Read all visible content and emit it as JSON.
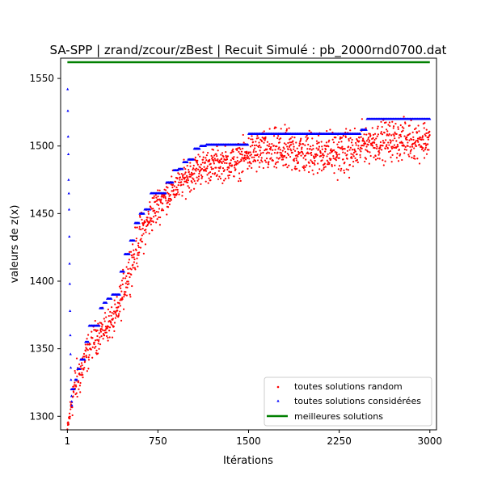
{
  "chart_data": {
    "type": "scatter",
    "title": "SA-SPP | zrand/zcour/zBest | Recuit Simulé : pb_2000rnd0700.dat",
    "xlabel": "Itérations",
    "ylabel": "valeurs de z(x)",
    "xlim": [
      -55,
      3055
    ],
    "ylim": [
      1290,
      1565
    ],
    "x_ticks": [
      1,
      750,
      1500,
      2250,
      3000
    ],
    "x_tick_labels": [
      "1",
      "750",
      "1500",
      "2250",
      "3000"
    ],
    "y_ticks": [
      1300,
      1350,
      1400,
      1450,
      1500,
      1550
    ],
    "y_tick_labels": [
      "1300",
      "1350",
      "1400",
      "1450",
      "1500",
      "1550"
    ],
    "grid": false,
    "legend_position": "lower-right",
    "series": [
      {
        "name": "toutes solutions random",
        "marker": "dot",
        "color": "#ff0000",
        "trend": {
          "x": [
            1,
            50,
            100,
            200,
            300,
            400,
            500,
            600,
            700,
            800,
            900,
            1000,
            1100,
            1200,
            1300,
            1400,
            1500,
            1700,
            2000,
            2300,
            2400,
            2450,
            2700,
            3000
          ],
          "center": [
            1290,
            1318,
            1330,
            1355,
            1365,
            1372,
            1405,
            1432,
            1450,
            1462,
            1470,
            1478,
            1484,
            1486,
            1487,
            1488,
            1494,
            1496,
            1495,
            1495,
            1497,
            1503,
            1504,
            1505
          ],
          "spread": [
            2,
            8,
            8,
            6,
            6,
            6,
            8,
            8,
            7,
            6,
            6,
            6,
            6,
            6,
            6,
            6,
            7,
            8,
            8,
            8,
            8,
            7,
            7,
            7
          ]
        }
      },
      {
        "name": "toutes solutions considérées",
        "marker": "triangle",
        "color": "#0000ff",
        "initial_points": {
          "x": [
            3,
            5,
            7,
            9,
            11,
            13,
            15,
            17,
            19,
            21,
            23,
            25,
            27,
            29,
            31,
            33,
            35,
            37,
            39
          ],
          "y": [
            1542,
            1526,
            1507,
            1494,
            1475,
            1465,
            1453,
            1433,
            1413,
            1398,
            1378,
            1360,
            1346,
            1336,
            1327,
            1320,
            1315,
            1311,
            1308
          ]
        },
        "steps": {
          "x": [
            40,
            65,
            85,
            110,
            150,
            180,
            220,
            270,
            300,
            330,
            370,
            440,
            475,
            520,
            560,
            600,
            640,
            690,
            760,
            820,
            880,
            920,
            960,
            1000,
            1050,
            1100,
            1150,
            1300,
            1500,
            2430,
            2480,
            3000
          ],
          "y": [
            1320,
            1327,
            1335,
            1342,
            1355,
            1367,
            1367,
            1380,
            1384,
            1387,
            1390,
            1407,
            1420,
            1430,
            1443,
            1450,
            1453,
            1465,
            1465,
            1473,
            1482,
            1483,
            1488,
            1490,
            1498,
            1500,
            1501,
            1501,
            1509,
            1512,
            1520,
            1520
          ]
        }
      },
      {
        "name": "meilleures solutions",
        "marker": "line",
        "color": "#008000",
        "x": [
          1,
          3000
        ],
        "y": [
          1562,
          1562
        ]
      }
    ]
  }
}
